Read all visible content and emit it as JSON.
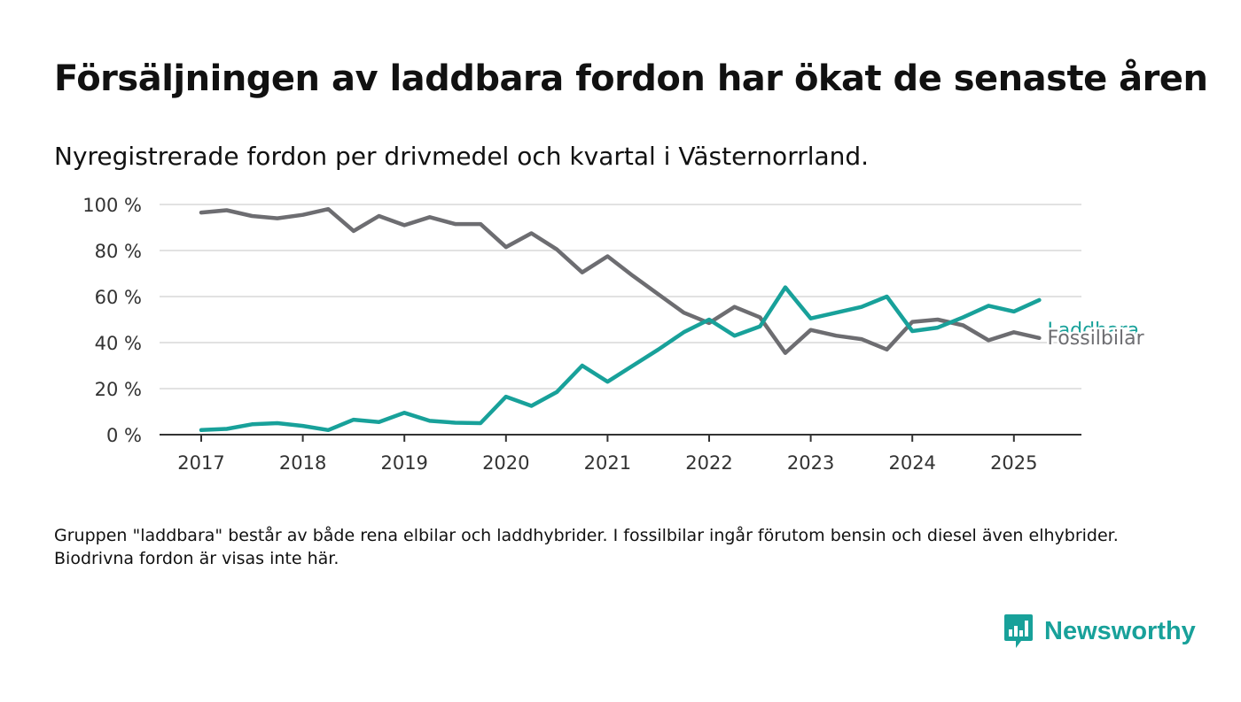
{
  "title": "Försäljningen av laddbara fordon har ökat de senaste åren",
  "subtitle": "Nyregistrerade fordon per drivmedel och kvartal i Västernorrland.",
  "note": "Gruppen \"laddbara\" består av både rena elbilar och laddhybrider. I fossilbilar ingår förutom bensin och diesel även elhybrider. Biodrivna fordon är visas inte här.",
  "brand": {
    "name": "Newsworthy",
    "color": "#18a19a",
    "icon": "newsworthy-logo-icon"
  },
  "chart_data": {
    "type": "line",
    "x_unit": "quarter",
    "x": [
      "2017-Q1",
      "2017-Q2",
      "2017-Q3",
      "2017-Q4",
      "2018-Q1",
      "2018-Q2",
      "2018-Q3",
      "2018-Q4",
      "2019-Q1",
      "2019-Q2",
      "2019-Q3",
      "2019-Q4",
      "2020-Q1",
      "2020-Q2",
      "2020-Q3",
      "2020-Q4",
      "2021-Q1",
      "2021-Q2",
      "2021-Q3",
      "2021-Q4",
      "2022-Q1",
      "2022-Q2",
      "2022-Q3",
      "2022-Q4",
      "2023-Q1",
      "2023-Q2",
      "2023-Q3",
      "2023-Q4",
      "2024-Q1",
      "2024-Q2",
      "2024-Q3",
      "2024-Q4",
      "2025-Q1",
      "2025-Q2"
    ],
    "x_ticks": [
      "2017",
      "2018",
      "2019",
      "2020",
      "2021",
      "2022",
      "2023",
      "2024",
      "2025"
    ],
    "y_ticks": [
      "0 %",
      "20 %",
      "40 %",
      "60 %",
      "80 %",
      "100 %"
    ],
    "ylim": [
      0,
      100
    ],
    "grid": true,
    "legend": "direct labels at line ends",
    "series": [
      {
        "name": "Fossilbilar",
        "color": "#6d6d71",
        "values": [
          96.5,
          97.5,
          95,
          94,
          95.5,
          98,
          88.5,
          95,
          91,
          94.5,
          91.5,
          91.5,
          81.5,
          87.5,
          80.5,
          70.5,
          77.5,
          69,
          61,
          53,
          48.5,
          55.5,
          51,
          35.5,
          45.5,
          43,
          41.5,
          37,
          49,
          50,
          47.5,
          41,
          44.5,
          42
        ]
      },
      {
        "name": "Laddbara",
        "color": "#18a19a",
        "values": [
          2,
          2.5,
          4.5,
          5,
          3.8,
          2,
          6.5,
          5.5,
          9.5,
          6,
          5.2,
          5,
          16.5,
          12.5,
          18.5,
          30,
          23,
          30,
          37,
          44.5,
          50,
          43,
          47,
          64,
          50.5,
          53,
          55.5,
          60,
          45,
          46.5,
          51,
          56,
          53.5,
          58.5
        ]
      }
    ]
  }
}
